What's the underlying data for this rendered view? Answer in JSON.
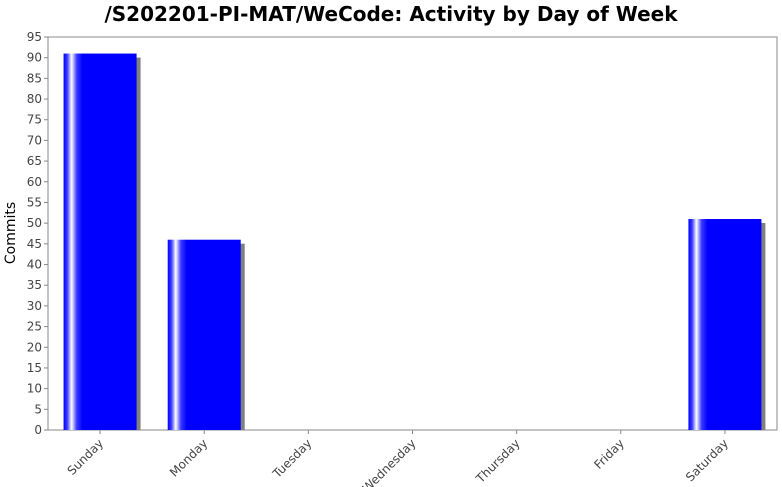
{
  "chart_data": {
    "type": "bar",
    "title": "/S202201-PI-MAT/WeCode: Activity by Day of Week",
    "xlabel": "",
    "ylabel": "Commits",
    "categories": [
      "Sunday",
      "Monday",
      "Tuesday",
      "Wednesday",
      "Thursday",
      "Friday",
      "Saturday"
    ],
    "values": [
      91,
      46,
      0,
      0,
      0,
      0,
      51
    ],
    "ylim": [
      0,
      95
    ],
    "yticks": [
      0,
      5,
      10,
      15,
      20,
      25,
      30,
      35,
      40,
      45,
      50,
      55,
      60,
      65,
      70,
      75,
      80,
      85,
      90,
      95
    ],
    "grid": false,
    "legend": "none",
    "colors": {
      "bar": "#0000ff",
      "shadow": "#808080",
      "highlight": "#ffffff",
      "axis": "#888888"
    }
  }
}
